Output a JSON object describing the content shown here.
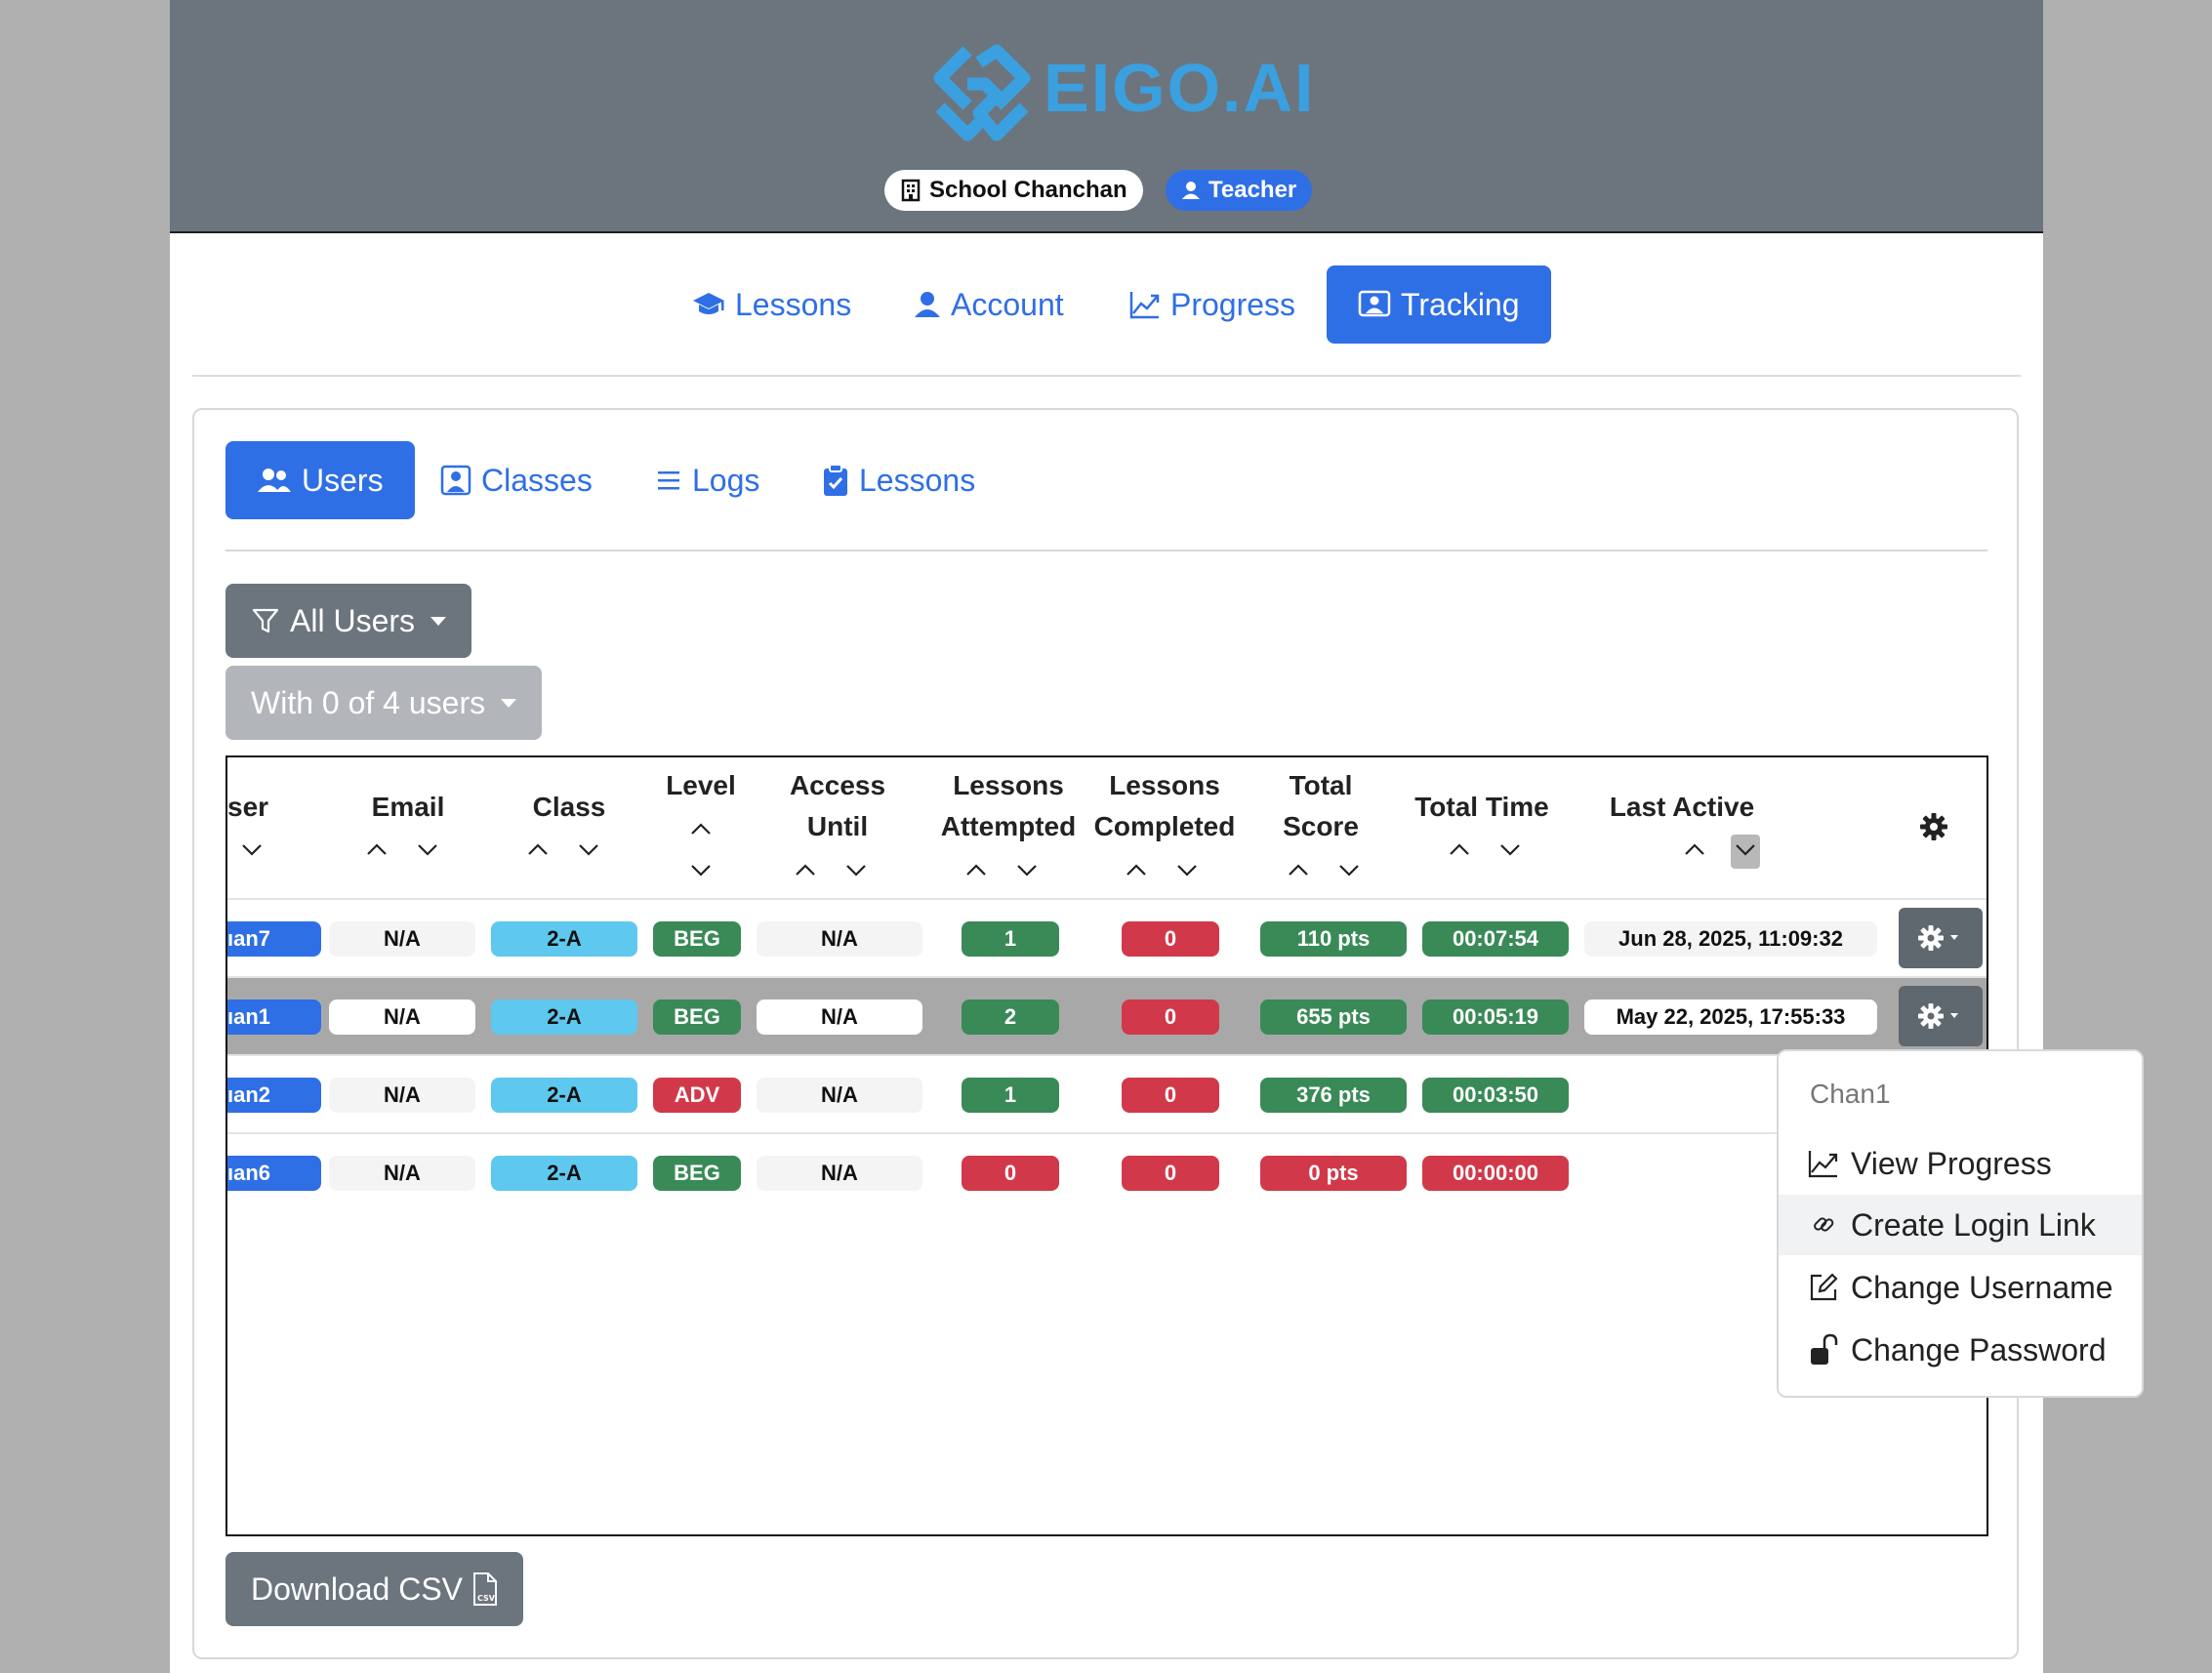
{
  "header": {
    "logo_text": "EIGO.AI",
    "school": "School Chanchan",
    "role": "Teacher"
  },
  "top_nav": [
    {
      "label": "Lessons",
      "icon": "graduation-cap-icon"
    },
    {
      "label": "Account",
      "icon": "person-icon"
    },
    {
      "label": "Progress",
      "icon": "graph-up-icon"
    },
    {
      "label": "Tracking",
      "icon": "person-badge-icon",
      "active": true
    }
  ],
  "sub_nav": [
    {
      "label": "Users",
      "icon": "people-icon",
      "active": true
    },
    {
      "label": "Classes",
      "icon": "person-square-icon"
    },
    {
      "label": "Logs",
      "icon": "list-icon"
    },
    {
      "label": "Lessons",
      "icon": "clipboard-check-icon"
    }
  ],
  "filters": {
    "user_filter": "All Users",
    "selection": "With 0 of 4 users"
  },
  "table": {
    "headers": {
      "user": "ser",
      "email": "Email",
      "class": "Class",
      "level": "Level",
      "access_1": "Access",
      "access_2": "Until",
      "attempted_1": "Lessons",
      "attempted_2": "Attempted",
      "completed_1": "Lessons",
      "completed_2": "Completed",
      "score_1": "Total",
      "score_2": "Score",
      "time": "Total Time",
      "active": "Last Active"
    },
    "rows": [
      {
        "user": "ıan7",
        "email": "N/A",
        "class": "2-A",
        "level": "BEG",
        "access": "N/A",
        "attempted": "1",
        "completed": "0",
        "score": "110 pts",
        "time": "00:07:54",
        "last_active": "Jun 28, 2025, 11:09:32"
      },
      {
        "user": "ıan1",
        "email": "N/A",
        "class": "2-A",
        "level": "BEG",
        "access": "N/A",
        "attempted": "2",
        "completed": "0",
        "score": "655 pts",
        "time": "00:05:19",
        "last_active": "May 22, 2025, 17:55:33"
      },
      {
        "user": "ıan2",
        "email": "N/A",
        "class": "2-A",
        "level": "ADV",
        "access": "N/A",
        "attempted": "1",
        "completed": "0",
        "score": "376 pts",
        "time": "00:03:50",
        "last_active": ""
      },
      {
        "user": "ıan6",
        "email": "N/A",
        "class": "2-A",
        "level": "BEG",
        "access": "N/A",
        "attempted": "0",
        "completed": "0",
        "score": "0 pts",
        "time": "00:00:00",
        "last_active": ""
      }
    ]
  },
  "dropdown": {
    "header": "Chan1",
    "items": [
      "View Progress",
      "Create Login Link",
      "Change Username",
      "Change Password"
    ]
  },
  "download": {
    "label": "Download CSV"
  },
  "colors": {
    "primary": "#2f6fe6",
    "secondary": "#6c757d",
    "success": "#3a8a57",
    "danger": "#d1394a",
    "info": "#5ec8ee",
    "logo": "#3aa0e0"
  }
}
